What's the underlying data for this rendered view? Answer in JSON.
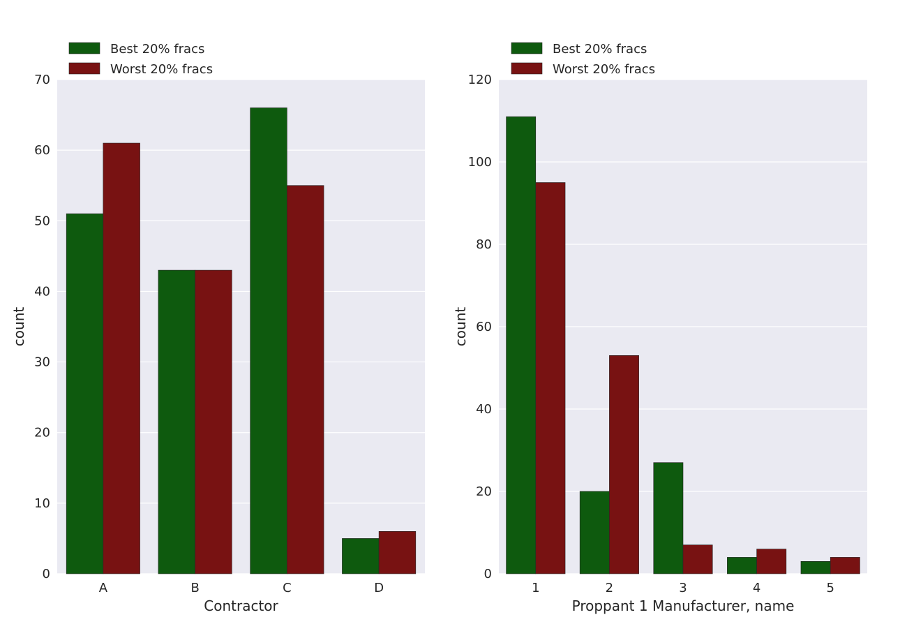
{
  "chart_data": [
    {
      "type": "bar",
      "title": "",
      "xlabel": "Contractor",
      "ylabel": "count",
      "categories": [
        "A",
        "B",
        "C",
        "D"
      ],
      "ylim": [
        0,
        70
      ],
      "yticks": [
        0,
        10,
        20,
        30,
        40,
        50,
        60,
        70
      ],
      "grid": true,
      "legend_position": "top-left",
      "series": [
        {
          "name": "Best 20% fracs",
          "color": "#0e5a0e",
          "values": [
            51,
            43,
            66,
            5
          ]
        },
        {
          "name": "Worst 20% fracs",
          "color": "#781212",
          "values": [
            61,
            43,
            55,
            6
          ]
        }
      ]
    },
    {
      "type": "bar",
      "title": "",
      "xlabel": "Proppant 1 Manufacturer, name",
      "ylabel": "count",
      "categories": [
        "1",
        "2",
        "3",
        "4",
        "5"
      ],
      "ylim": [
        0,
        120
      ],
      "yticks": [
        0,
        20,
        40,
        60,
        80,
        100,
        120
      ],
      "grid": true,
      "legend_position": "top-left",
      "series": [
        {
          "name": "Best 20% fracs",
          "color": "#0e5a0e",
          "values": [
            111,
            20,
            27,
            4,
            3
          ]
        },
        {
          "name": "Worst 20% fracs",
          "color": "#781212",
          "values": [
            95,
            53,
            7,
            6,
            4
          ]
        }
      ]
    }
  ],
  "style": {
    "plot_background": "#eaeaf2",
    "grid_color": "#ffffff",
    "bar_edge": "#262626"
  }
}
